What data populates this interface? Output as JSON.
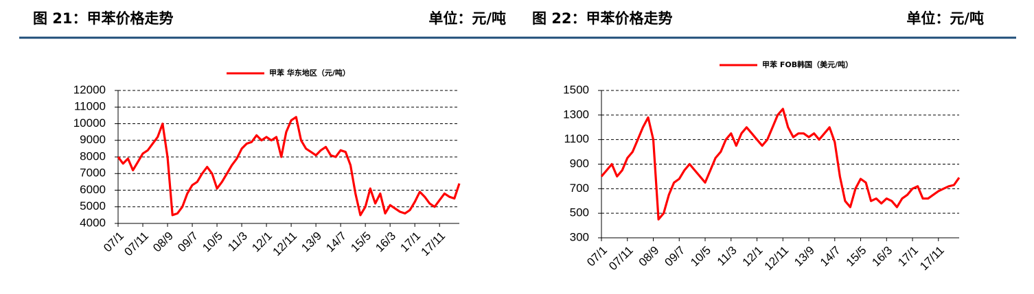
{
  "chart_data": [
    {
      "type": "line",
      "title": "图 21：甲苯价格走势",
      "unit_label": "单位：元/吨",
      "categories": [
        "07/1",
        null,
        null,
        null,
        null,
        "07/11",
        null,
        null,
        null,
        null,
        "08/9",
        null,
        null,
        null,
        null,
        "09/7",
        null,
        null,
        null,
        null,
        "10/5",
        null,
        null,
        null,
        null,
        "11/3",
        null,
        null,
        null,
        null,
        "12/1",
        null,
        null,
        null,
        null,
        "12/11",
        null,
        null,
        null,
        null,
        "13/9",
        null,
        null,
        null,
        null,
        "14/7",
        null,
        null,
        null,
        null,
        "15/5",
        null,
        null,
        null,
        null,
        "16/3",
        null,
        null,
        null,
        null,
        "17/1",
        null,
        null,
        null,
        null,
        "17/11",
        null,
        null,
        null,
        null
      ],
      "series": [
        {
          "name": "甲苯 华东地区（元/吨）",
          "color": "#ff0000",
          "values": [
            8000,
            7600,
            7900,
            7200,
            7700,
            8200,
            8400,
            8800,
            9200,
            10000,
            8000,
            4500,
            4600,
            5000,
            5800,
            6300,
            6500,
            7000,
            7400,
            7000,
            6100,
            6500,
            7000,
            7500,
            7900,
            8500,
            8800,
            8900,
            9300,
            9000,
            9200,
            9000,
            9200,
            8000,
            9500,
            10200,
            10400,
            9000,
            8500,
            8300,
            8100,
            8400,
            8600,
            8100,
            8000,
            8400,
            8300,
            7500,
            5800,
            4500,
            5000,
            6100,
            5200,
            5800,
            4600,
            5100,
            4900,
            4700,
            4600,
            4800,
            5300,
            5900,
            5600,
            5200,
            5000,
            5400,
            5800,
            5600,
            5500,
            6400
          ]
        }
      ],
      "ylim": [
        4000,
        12000
      ],
      "yticks": [
        4000,
        5000,
        6000,
        7000,
        8000,
        9000,
        10000,
        11000,
        12000
      ],
      "grid": true
    },
    {
      "type": "line",
      "title": "图 22：甲苯价格走势",
      "unit_label": "单位：元/吨",
      "categories": [
        "07/1",
        null,
        null,
        null,
        null,
        "07/11",
        null,
        null,
        null,
        null,
        "08/9",
        null,
        null,
        null,
        null,
        "09/7",
        null,
        null,
        null,
        null,
        "10/5",
        null,
        null,
        null,
        null,
        "11/3",
        null,
        null,
        null,
        null,
        "12/1",
        null,
        null,
        null,
        null,
        "12/11",
        null,
        null,
        null,
        null,
        "13/9",
        null,
        null,
        null,
        null,
        "14/7",
        null,
        null,
        null,
        null,
        "15/5",
        null,
        null,
        null,
        null,
        "16/3",
        null,
        null,
        null,
        null,
        "17/1",
        null,
        null,
        null,
        null,
        "17/11",
        null,
        null,
        null,
        null
      ],
      "series": [
        {
          "name": "甲苯 FOB韩国（美元/吨）",
          "color": "#ff0000",
          "values": [
            800,
            850,
            900,
            800,
            850,
            950,
            1000,
            1100,
            1200,
            1280,
            1100,
            450,
            500,
            650,
            750,
            780,
            850,
            900,
            850,
            800,
            750,
            850,
            950,
            1000,
            1100,
            1150,
            1050,
            1150,
            1200,
            1150,
            1100,
            1050,
            1100,
            1200,
            1300,
            1350,
            1200,
            1120,
            1150,
            1150,
            1120,
            1150,
            1100,
            1150,
            1200,
            1080,
            800,
            600,
            550,
            700,
            780,
            750,
            600,
            620,
            580,
            620,
            600,
            550,
            620,
            650,
            700,
            720,
            620,
            620,
            650,
            680,
            700,
            720,
            730,
            790
          ]
        }
      ],
      "ylim": [
        300,
        1500
      ],
      "yticks": [
        300,
        500,
        700,
        900,
        1100,
        1300,
        1500
      ],
      "grid": true
    }
  ]
}
